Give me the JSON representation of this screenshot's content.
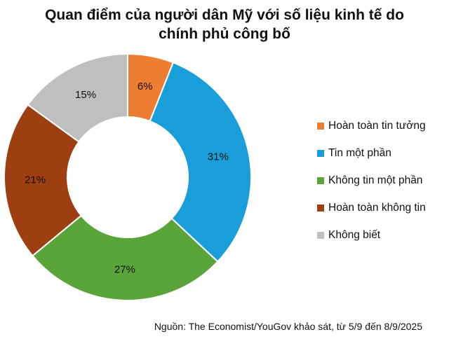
{
  "title_line1": "Quan điểm của người dân Mỹ với số liệu kinh tế do",
  "title_line2": "chính phủ công bố",
  "source": "Nguồn: The Economist/YouGov khảo sát, từ 5/9 đến 8/9/2025",
  "chart_data": {
    "type": "pie",
    "variant": "donut",
    "title": "Quan điểm của người dân Mỹ với số liệu kinh tế do chính phủ công bố",
    "legend_position": "right",
    "categories": [
      "Hoàn toàn tin tưởng",
      "Tin một phần",
      "Không tin một phần",
      "Hoàn toàn không tin",
      "Không biết"
    ],
    "values": [
      6,
      31,
      27,
      21,
      15
    ],
    "data_labels": [
      "6%",
      "31%",
      "27%",
      "21%",
      "15%"
    ],
    "colors": [
      "#ED7D31",
      "#1A9ED9",
      "#5AA53A",
      "#9E3F12",
      "#BFBFBF"
    ]
  }
}
